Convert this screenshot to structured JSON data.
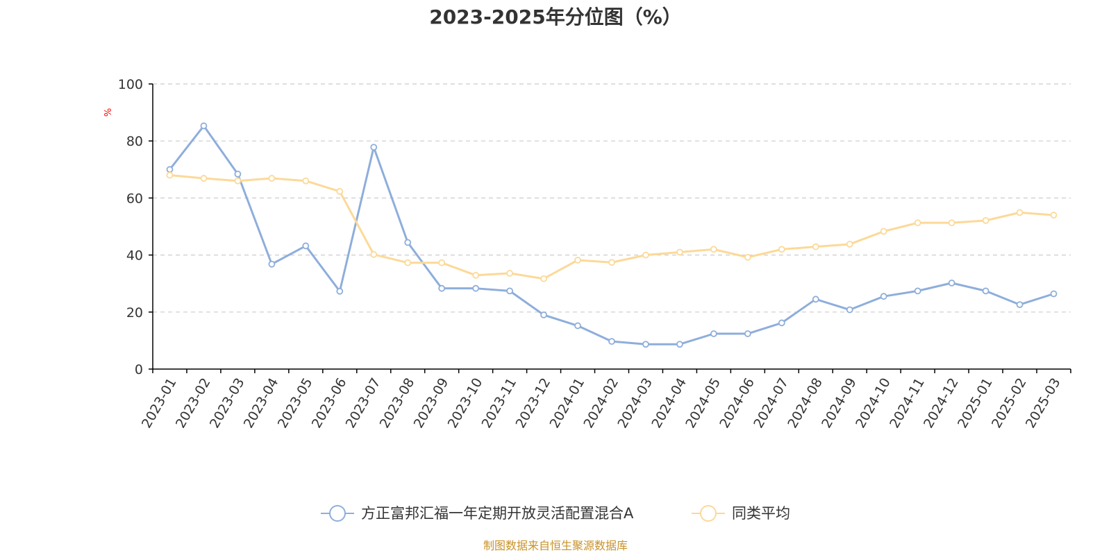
{
  "chart_data": {
    "type": "line",
    "title": "2023-2025年分位图（%）",
    "xlabel": "",
    "ylabel": "%",
    "ylim": [
      0,
      100
    ],
    "yticks": [
      0,
      20,
      40,
      60,
      80,
      100
    ],
    "grid": true,
    "legend_position": "bottom-center",
    "categories": [
      "2023-01",
      "2023-02",
      "2023-03",
      "2023-04",
      "2023-05",
      "2023-06",
      "2023-07",
      "2023-08",
      "2023-09",
      "2023-10",
      "2023-11",
      "2023-12",
      "2024-01",
      "2024-02",
      "2024-03",
      "2024-04",
      "2024-05",
      "2024-06",
      "2024-07",
      "2024-08",
      "2024-09",
      "2024-10",
      "2024-11",
      "2024-12",
      "2025-01",
      "2025-02",
      "2025-03"
    ],
    "series": [
      {
        "name": "方正富邦汇福一年定期开放灵活配置混合A",
        "color": "#8eaedb",
        "values": [
          70.0,
          85.3,
          68.4,
          36.8,
          43.2,
          27.3,
          77.8,
          44.4,
          28.3,
          28.3,
          27.4,
          19.0,
          15.2,
          9.7,
          8.7,
          8.7,
          12.4,
          12.4,
          16.2,
          24.5,
          20.8,
          25.5,
          27.4,
          30.2,
          27.4,
          22.6,
          26.4
        ]
      },
      {
        "name": "同类平均",
        "color": "#fcd998",
        "values": [
          68.0,
          66.9,
          66.0,
          66.9,
          66.0,
          62.3,
          40.2,
          37.3,
          37.3,
          32.9,
          33.6,
          31.7,
          38.2,
          37.4,
          40.0,
          41.0,
          42.0,
          39.2,
          42.0,
          42.9,
          43.8,
          48.3,
          51.3,
          51.3,
          52.1,
          54.9,
          54.0
        ]
      }
    ]
  },
  "source_text": "制图数据来自恒生聚源数据库",
  "colors": {
    "axis": "#000000",
    "grid": "#cccccc",
    "ylabel": "#ff0000",
    "source": "#c8922a"
  }
}
